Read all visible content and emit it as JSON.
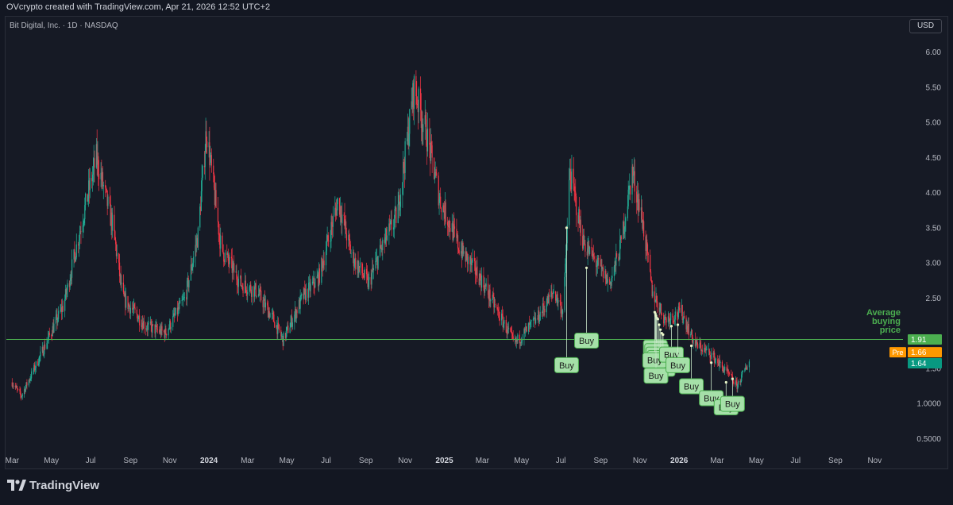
{
  "header": {
    "title": "OVcrypto created with TradingView.com, Apr 21, 2026 12:52 UTC+2"
  },
  "symbol_line": "Bit Digital, Inc. · 1D · NASDAQ",
  "currency": "USD",
  "brand": "TradingView",
  "colors": {
    "background": "#161a25",
    "up": "#22ab94",
    "down": "#f23645",
    "avg_line": "#4caf50",
    "buy_label": "#a5e0a8",
    "pre_badge": "#ff9800",
    "last_badge": "#089981"
  },
  "chart_data": {
    "type": "candlestick",
    "title": "Bit Digital, Inc. · 1D · NASDAQ",
    "ylim": [
      0.3,
      6.2
    ],
    "y_ticks": [
      {
        "value": 6.0,
        "label": "6.00"
      },
      {
        "value": 5.5,
        "label": "5.50"
      },
      {
        "value": 5.0,
        "label": "5.00"
      },
      {
        "value": 4.5,
        "label": "4.50"
      },
      {
        "value": 4.0,
        "label": "4.00"
      },
      {
        "value": 3.5,
        "label": "3.50"
      },
      {
        "value": 3.0,
        "label": "3.00"
      },
      {
        "value": 2.5,
        "label": "2.50"
      },
      {
        "value": 1.5,
        "label": "1.50"
      },
      {
        "value": 1.0,
        "label": "1.0000"
      },
      {
        "value": 0.5,
        "label": "0.5000"
      }
    ],
    "x_ticks": [
      {
        "date": "2023-03-01",
        "label": "Mar",
        "year": false
      },
      {
        "date": "2023-05-01",
        "label": "May",
        "year": false
      },
      {
        "date": "2023-07-01",
        "label": "Jul",
        "year": false
      },
      {
        "date": "2023-09-01",
        "label": "Sep",
        "year": false
      },
      {
        "date": "2023-11-01",
        "label": "Nov",
        "year": false
      },
      {
        "date": "2024-01-01",
        "label": "2024",
        "year": true
      },
      {
        "date": "2024-03-01",
        "label": "Mar",
        "year": false
      },
      {
        "date": "2024-05-01",
        "label": "May",
        "year": false
      },
      {
        "date": "2024-07-01",
        "label": "Jul",
        "year": false
      },
      {
        "date": "2024-09-01",
        "label": "Sep",
        "year": false
      },
      {
        "date": "2024-11-01",
        "label": "Nov",
        "year": false
      },
      {
        "date": "2025-01-01",
        "label": "2025",
        "year": true
      },
      {
        "date": "2025-03-01",
        "label": "Mar",
        "year": false
      },
      {
        "date": "2025-05-01",
        "label": "May",
        "year": false
      },
      {
        "date": "2025-07-01",
        "label": "Jul",
        "year": false
      },
      {
        "date": "2025-09-01",
        "label": "Sep",
        "year": false
      },
      {
        "date": "2025-11-01",
        "label": "Nov",
        "year": false
      },
      {
        "date": "2026-01-01",
        "label": "2026",
        "year": true
      },
      {
        "date": "2026-03-01",
        "label": "Mar",
        "year": false
      },
      {
        "date": "2026-05-01",
        "label": "May",
        "year": false
      },
      {
        "date": "2026-07-01",
        "label": "Jul",
        "year": false
      },
      {
        "date": "2026-09-01",
        "label": "Sep",
        "year": false
      },
      {
        "date": "2026-11-01",
        "label": "Nov",
        "year": false
      }
    ],
    "price_path": [
      {
        "date": "2023-03-01",
        "price": 1.3
      },
      {
        "date": "2023-03-15",
        "price": 1.1
      },
      {
        "date": "2023-04-15",
        "price": 1.7
      },
      {
        "date": "2023-05-20",
        "price": 2.4
      },
      {
        "date": "2023-06-25",
        "price": 3.9
      },
      {
        "date": "2023-07-10",
        "price": 4.5
      },
      {
        "date": "2023-08-05",
        "price": 3.5
      },
      {
        "date": "2023-08-20",
        "price": 2.5
      },
      {
        "date": "2023-09-25",
        "price": 2.1
      },
      {
        "date": "2023-10-25",
        "price": 2.0
      },
      {
        "date": "2023-11-25",
        "price": 2.5
      },
      {
        "date": "2023-12-15",
        "price": 3.4
      },
      {
        "date": "2023-12-28",
        "price": 4.9
      },
      {
        "date": "2024-01-20",
        "price": 3.2
      },
      {
        "date": "2024-02-20",
        "price": 2.7
      },
      {
        "date": "2024-03-15",
        "price": 2.6
      },
      {
        "date": "2024-04-10",
        "price": 2.2
      },
      {
        "date": "2024-04-25",
        "price": 1.9
      },
      {
        "date": "2024-05-25",
        "price": 2.5
      },
      {
        "date": "2024-06-20",
        "price": 2.8
      },
      {
        "date": "2024-07-20",
        "price": 3.9
      },
      {
        "date": "2024-08-10",
        "price": 3.1
      },
      {
        "date": "2024-09-05",
        "price": 2.7
      },
      {
        "date": "2024-09-25",
        "price": 3.2
      },
      {
        "date": "2024-10-20",
        "price": 3.7
      },
      {
        "date": "2024-11-15",
        "price": 5.5
      },
      {
        "date": "2024-12-05",
        "price": 4.8
      },
      {
        "date": "2024-12-25",
        "price": 3.9
      },
      {
        "date": "2025-01-25",
        "price": 3.2
      },
      {
        "date": "2025-02-25",
        "price": 2.8
      },
      {
        "date": "2025-03-25",
        "price": 2.3
      },
      {
        "date": "2025-04-20",
        "price": 1.85
      },
      {
        "date": "2025-05-25",
        "price": 2.2
      },
      {
        "date": "2025-06-20",
        "price": 2.6
      },
      {
        "date": "2025-07-05",
        "price": 2.3
      },
      {
        "date": "2025-07-15",
        "price": 4.3
      },
      {
        "date": "2025-08-05",
        "price": 3.3
      },
      {
        "date": "2025-08-25",
        "price": 3.0
      },
      {
        "date": "2025-09-15",
        "price": 2.7
      },
      {
        "date": "2025-10-01",
        "price": 3.2
      },
      {
        "date": "2025-10-20",
        "price": 4.3
      },
      {
        "date": "2025-11-05",
        "price": 3.6
      },
      {
        "date": "2025-11-20",
        "price": 2.6
      },
      {
        "date": "2025-12-10",
        "price": 2.2
      },
      {
        "date": "2026-01-05",
        "price": 2.3
      },
      {
        "date": "2026-01-25",
        "price": 1.85
      },
      {
        "date": "2026-02-20",
        "price": 1.7
      },
      {
        "date": "2026-03-15",
        "price": 1.45
      },
      {
        "date": "2026-04-01",
        "price": 1.25
      },
      {
        "date": "2026-04-20",
        "price": 1.6
      }
    ],
    "average_buying_price": 1.91,
    "average_label": "Average buying price",
    "price_badges": [
      {
        "value": 1.91,
        "label": "1.91",
        "prefix": ""
      },
      {
        "value": 1.66,
        "label": "1.66",
        "prefix": "Pre"
      },
      {
        "value": 1.64,
        "label": "1.64",
        "prefix": ""
      }
    ],
    "buy_labels": [
      {
        "date": "2025-07-10",
        "price": 1.55,
        "entry": 3.5,
        "text": "Buy"
      },
      {
        "date": "2025-08-10",
        "price": 1.9,
        "entry": 2.93,
        "text": "Buy"
      },
      {
        "date": "2025-11-25",
        "price": 1.8,
        "entry": 2.28,
        "text": "Buy"
      },
      {
        "date": "2025-11-27",
        "price": 1.75,
        "entry": 2.22,
        "text": "Buy"
      },
      {
        "date": "2025-11-29",
        "price": 1.7,
        "entry": 2.2,
        "text": "Buy"
      },
      {
        "date": "2025-12-01",
        "price": 1.65,
        "entry": 2.12,
        "text": "Buy"
      },
      {
        "date": "2025-12-03",
        "price": 1.6,
        "entry": 2.05,
        "text": "Buy"
      },
      {
        "date": "2025-12-05",
        "price": 1.55,
        "entry": 2.0,
        "text": "Buy"
      },
      {
        "date": "2025-12-07",
        "price": 1.5,
        "entry": 1.98,
        "text": "Buy"
      },
      {
        "date": "2025-11-24",
        "price": 1.62,
        "entry": 2.3,
        "text": "Buy"
      },
      {
        "date": "2025-11-26",
        "price": 1.4,
        "entry": 2.25,
        "text": "Buy"
      },
      {
        "date": "2025-12-20",
        "price": 1.7,
        "entry": 2.1,
        "text": "Buy"
      },
      {
        "date": "2025-12-30",
        "price": 1.55,
        "entry": 2.12,
        "text": "Buy"
      },
      {
        "date": "2026-01-20",
        "price": 1.25,
        "entry": 1.82,
        "text": "Buy"
      },
      {
        "date": "2026-02-20",
        "price": 1.08,
        "entry": 1.58,
        "text": "Buy"
      },
      {
        "date": "2026-03-15",
        "price": 0.95,
        "entry": 1.3,
        "text": "Buy"
      },
      {
        "date": "2026-03-25",
        "price": 1.0,
        "entry": 1.35,
        "text": "Buy"
      }
    ]
  }
}
